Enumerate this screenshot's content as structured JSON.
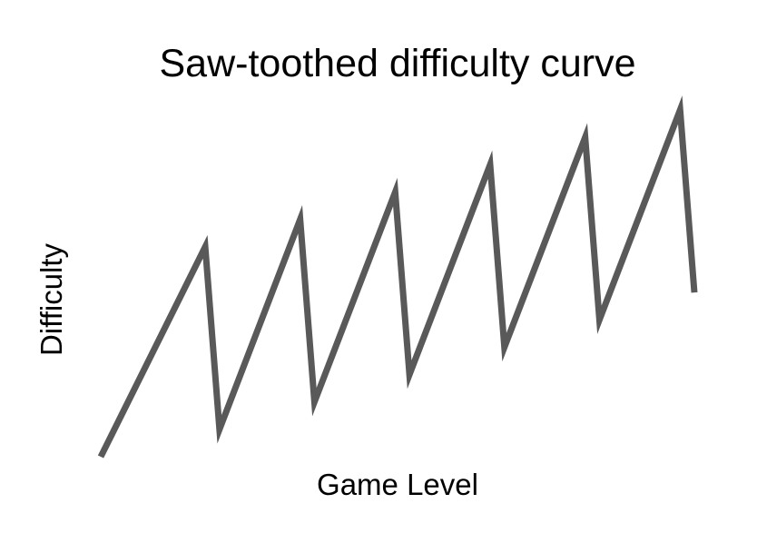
{
  "chart_data": {
    "type": "line",
    "title": "Saw-toothed difficulty curve",
    "xlabel": "Game Level",
    "ylabel": "Difficulty",
    "grid": false,
    "axes_visible": false,
    "line_color": "#595959",
    "x": [
      0,
      1.1,
      1.25,
      2.1,
      2.25,
      3.1,
      3.25,
      4.1,
      4.25,
      5.1,
      5.25,
      6.1,
      6.25
    ],
    "y": [
      0,
      4.6,
      0.6,
      5.2,
      1.2,
      5.8,
      1.8,
      6.4,
      2.4,
      7.0,
      3.0,
      7.6,
      3.6
    ],
    "xlim": [
      0,
      6.25
    ],
    "ylim": [
      0,
      7.6
    ]
  }
}
